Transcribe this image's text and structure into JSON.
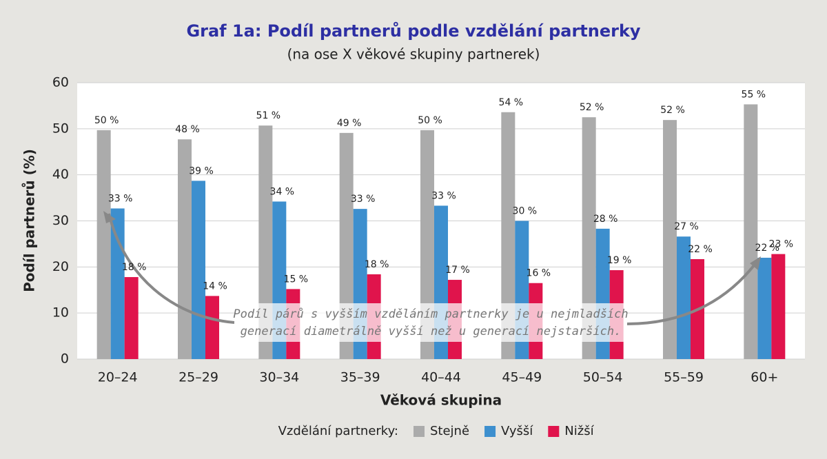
{
  "chart_data": {
    "type": "bar",
    "title": "Graf 1a: Podíl partnerů podle vzdělání partnerky",
    "subtitle": "(na ose X věkové skupiny partnerek)",
    "x_label": "Věková skupina",
    "y_label": "Podíl partnerů (%)",
    "legend_title": "Vzdělání partnerky:",
    "categories": [
      "20–24",
      "25–29",
      "30–34",
      "35–39",
      "40–44",
      "45–49",
      "50–54",
      "55–59",
      "60+"
    ],
    "series": [
      {
        "name": "Stejně",
        "color": "#ababab",
        "values": [
          49.7,
          47.7,
          50.7,
          49.1,
          49.7,
          53.6,
          52.5,
          51.9,
          55.3
        ],
        "value_labels": [
          "50 %",
          "48 %",
          "51 %",
          "49 %",
          "50 %",
          "54 %",
          "52 %",
          "52 %",
          "55 %"
        ]
      },
      {
        "name": "Vyšší",
        "color": "#3d8fce",
        "values": [
          32.7,
          38.7,
          34.2,
          32.6,
          33.3,
          30.0,
          28.3,
          26.6,
          22.0
        ],
        "value_labels": [
          "33 %",
          "39 %",
          "34 %",
          "33 %",
          "33 %",
          "30 %",
          "28 %",
          "27 %",
          "22 %"
        ]
      },
      {
        "name": "Nižší",
        "color": "#e0144c",
        "values": [
          17.8,
          13.7,
          15.2,
          18.4,
          17.2,
          16.5,
          19.3,
          21.7,
          22.8
        ],
        "value_labels": [
          "18 %",
          "14 %",
          "15 %",
          "18 %",
          "17 %",
          "16 %",
          "19 %",
          "22 %",
          "23 %"
        ]
      }
    ],
    "ylim": [
      0,
      60
    ],
    "yticks": [
      0,
      10,
      20,
      30,
      40,
      50,
      60
    ],
    "grid": true,
    "annotation": [
      "Podíl párů s vyšším vzděláním partnerky je u nejmladších",
      "generací diametrálně vyšší než u generací nejstarších."
    ]
  }
}
